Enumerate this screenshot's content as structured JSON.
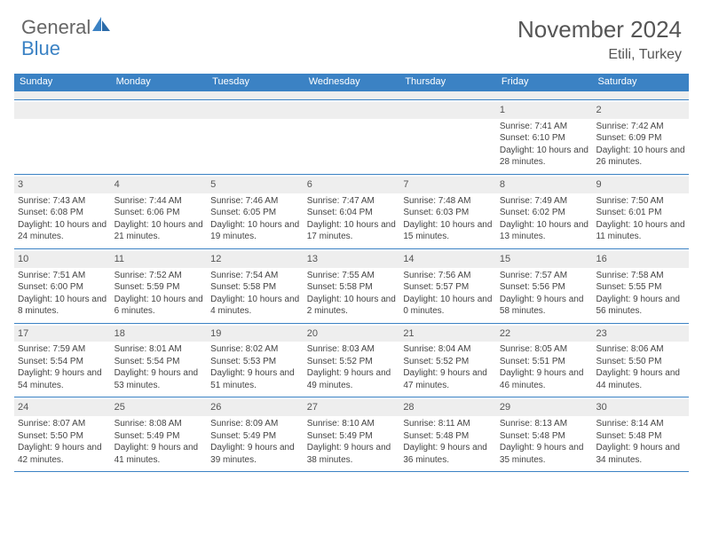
{
  "logo": {
    "general": "General",
    "blue": "Blue"
  },
  "month_title": "November 2024",
  "location": "Etili, Turkey",
  "colors": {
    "header_bar": "#3b82c4",
    "header_text": "#ffffff",
    "daynum_bg": "#eeeeee",
    "body_text": "#444444",
    "rule": "#3b82c4"
  },
  "day_headers": [
    "Sunday",
    "Monday",
    "Tuesday",
    "Wednesday",
    "Thursday",
    "Friday",
    "Saturday"
  ],
  "weeks": [
    [
      {
        "n": "",
        "sr": "",
        "ss": "",
        "dl": ""
      },
      {
        "n": "",
        "sr": "",
        "ss": "",
        "dl": ""
      },
      {
        "n": "",
        "sr": "",
        "ss": "",
        "dl": ""
      },
      {
        "n": "",
        "sr": "",
        "ss": "",
        "dl": ""
      },
      {
        "n": "",
        "sr": "",
        "ss": "",
        "dl": ""
      },
      {
        "n": "1",
        "sr": "Sunrise: 7:41 AM",
        "ss": "Sunset: 6:10 PM",
        "dl": "Daylight: 10 hours and 28 minutes."
      },
      {
        "n": "2",
        "sr": "Sunrise: 7:42 AM",
        "ss": "Sunset: 6:09 PM",
        "dl": "Daylight: 10 hours and 26 minutes."
      }
    ],
    [
      {
        "n": "3",
        "sr": "Sunrise: 7:43 AM",
        "ss": "Sunset: 6:08 PM",
        "dl": "Daylight: 10 hours and 24 minutes."
      },
      {
        "n": "4",
        "sr": "Sunrise: 7:44 AM",
        "ss": "Sunset: 6:06 PM",
        "dl": "Daylight: 10 hours and 21 minutes."
      },
      {
        "n": "5",
        "sr": "Sunrise: 7:46 AM",
        "ss": "Sunset: 6:05 PM",
        "dl": "Daylight: 10 hours and 19 minutes."
      },
      {
        "n": "6",
        "sr": "Sunrise: 7:47 AM",
        "ss": "Sunset: 6:04 PM",
        "dl": "Daylight: 10 hours and 17 minutes."
      },
      {
        "n": "7",
        "sr": "Sunrise: 7:48 AM",
        "ss": "Sunset: 6:03 PM",
        "dl": "Daylight: 10 hours and 15 minutes."
      },
      {
        "n": "8",
        "sr": "Sunrise: 7:49 AM",
        "ss": "Sunset: 6:02 PM",
        "dl": "Daylight: 10 hours and 13 minutes."
      },
      {
        "n": "9",
        "sr": "Sunrise: 7:50 AM",
        "ss": "Sunset: 6:01 PM",
        "dl": "Daylight: 10 hours and 11 minutes."
      }
    ],
    [
      {
        "n": "10",
        "sr": "Sunrise: 7:51 AM",
        "ss": "Sunset: 6:00 PM",
        "dl": "Daylight: 10 hours and 8 minutes."
      },
      {
        "n": "11",
        "sr": "Sunrise: 7:52 AM",
        "ss": "Sunset: 5:59 PM",
        "dl": "Daylight: 10 hours and 6 minutes."
      },
      {
        "n": "12",
        "sr": "Sunrise: 7:54 AM",
        "ss": "Sunset: 5:58 PM",
        "dl": "Daylight: 10 hours and 4 minutes."
      },
      {
        "n": "13",
        "sr": "Sunrise: 7:55 AM",
        "ss": "Sunset: 5:58 PM",
        "dl": "Daylight: 10 hours and 2 minutes."
      },
      {
        "n": "14",
        "sr": "Sunrise: 7:56 AM",
        "ss": "Sunset: 5:57 PM",
        "dl": "Daylight: 10 hours and 0 minutes."
      },
      {
        "n": "15",
        "sr": "Sunrise: 7:57 AM",
        "ss": "Sunset: 5:56 PM",
        "dl": "Daylight: 9 hours and 58 minutes."
      },
      {
        "n": "16",
        "sr": "Sunrise: 7:58 AM",
        "ss": "Sunset: 5:55 PM",
        "dl": "Daylight: 9 hours and 56 minutes."
      }
    ],
    [
      {
        "n": "17",
        "sr": "Sunrise: 7:59 AM",
        "ss": "Sunset: 5:54 PM",
        "dl": "Daylight: 9 hours and 54 minutes."
      },
      {
        "n": "18",
        "sr": "Sunrise: 8:01 AM",
        "ss": "Sunset: 5:54 PM",
        "dl": "Daylight: 9 hours and 53 minutes."
      },
      {
        "n": "19",
        "sr": "Sunrise: 8:02 AM",
        "ss": "Sunset: 5:53 PM",
        "dl": "Daylight: 9 hours and 51 minutes."
      },
      {
        "n": "20",
        "sr": "Sunrise: 8:03 AM",
        "ss": "Sunset: 5:52 PM",
        "dl": "Daylight: 9 hours and 49 minutes."
      },
      {
        "n": "21",
        "sr": "Sunrise: 8:04 AM",
        "ss": "Sunset: 5:52 PM",
        "dl": "Daylight: 9 hours and 47 minutes."
      },
      {
        "n": "22",
        "sr": "Sunrise: 8:05 AM",
        "ss": "Sunset: 5:51 PM",
        "dl": "Daylight: 9 hours and 46 minutes."
      },
      {
        "n": "23",
        "sr": "Sunrise: 8:06 AM",
        "ss": "Sunset: 5:50 PM",
        "dl": "Daylight: 9 hours and 44 minutes."
      }
    ],
    [
      {
        "n": "24",
        "sr": "Sunrise: 8:07 AM",
        "ss": "Sunset: 5:50 PM",
        "dl": "Daylight: 9 hours and 42 minutes."
      },
      {
        "n": "25",
        "sr": "Sunrise: 8:08 AM",
        "ss": "Sunset: 5:49 PM",
        "dl": "Daylight: 9 hours and 41 minutes."
      },
      {
        "n": "26",
        "sr": "Sunrise: 8:09 AM",
        "ss": "Sunset: 5:49 PM",
        "dl": "Daylight: 9 hours and 39 minutes."
      },
      {
        "n": "27",
        "sr": "Sunrise: 8:10 AM",
        "ss": "Sunset: 5:49 PM",
        "dl": "Daylight: 9 hours and 38 minutes."
      },
      {
        "n": "28",
        "sr": "Sunrise: 8:11 AM",
        "ss": "Sunset: 5:48 PM",
        "dl": "Daylight: 9 hours and 36 minutes."
      },
      {
        "n": "29",
        "sr": "Sunrise: 8:13 AM",
        "ss": "Sunset: 5:48 PM",
        "dl": "Daylight: 9 hours and 35 minutes."
      },
      {
        "n": "30",
        "sr": "Sunrise: 8:14 AM",
        "ss": "Sunset: 5:48 PM",
        "dl": "Daylight: 9 hours and 34 minutes."
      }
    ]
  ]
}
